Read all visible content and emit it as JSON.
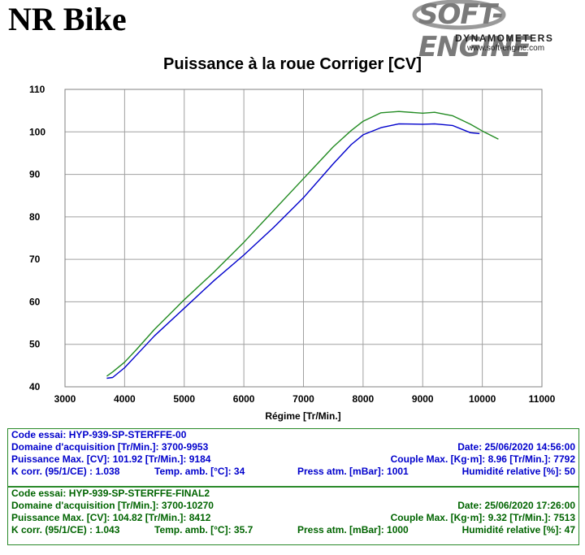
{
  "header": {
    "brand": "NR Bike",
    "logo_main": "SOFT-ENGINE",
    "logo_sub": "DYNAMOMETERS",
    "logo_url": "www.soft-engine.com"
  },
  "chart_data": {
    "type": "line",
    "title": "Puissance à la roue Corriger [CV]",
    "xlabel": "Régime [Tr/Min.]",
    "ylabel": "",
    "xlim": [
      3000,
      11000
    ],
    "ylim": [
      40,
      110
    ],
    "xticks": [
      3000,
      4000,
      5000,
      6000,
      7000,
      8000,
      9000,
      10000,
      11000
    ],
    "yticks": [
      40,
      50,
      60,
      70,
      80,
      90,
      100,
      110
    ],
    "grid": true,
    "series": [
      {
        "color": "#0000cc",
        "x": [
          3700,
          3800,
          4000,
          4200,
          4500,
          5000,
          5500,
          6000,
          6500,
          7000,
          7500,
          7800,
          8000,
          8300,
          8600,
          9000,
          9200,
          9500,
          9800,
          9953
        ],
        "y": [
          42.0,
          42.2,
          44.5,
          47.5,
          52.0,
          58.5,
          65.0,
          71.0,
          77.5,
          84.5,
          92.5,
          97.0,
          99.3,
          101.0,
          101.9,
          101.8,
          101.9,
          101.5,
          99.8,
          99.6
        ]
      },
      {
        "color": "#228b22",
        "x": [
          3700,
          3800,
          4000,
          4200,
          4500,
          5000,
          5500,
          6000,
          6500,
          7000,
          7500,
          7800,
          8000,
          8300,
          8600,
          9000,
          9200,
          9500,
          9800,
          10000,
          10270
        ],
        "y": [
          42.5,
          43.5,
          45.8,
          48.8,
          53.5,
          60.5,
          67.0,
          74.0,
          81.5,
          89.0,
          96.5,
          100.3,
          102.5,
          104.5,
          104.8,
          104.4,
          104.6,
          103.8,
          101.8,
          100.2,
          98.3
        ]
      }
    ]
  },
  "tests": [
    {
      "code": "Code essai: HYP-939-SP-STERFFE-00",
      "domain": "Domaine d'acquisition [Tr/Min.]: 3700-9953",
      "date": "Date: 25/06/2020    14:56:00",
      "power": "Puissance Max. [CV]: 101.92   [Tr/Min.]: 9184",
      "torque": "Couple Max. [Kg·m]: 8.96   [Tr/Min.]: 7792",
      "kcorr": "K corr. (95/1/CE) : 1.038",
      "temp": "Temp. amb. [°C]: 34",
      "press": "Press atm. [mBar]: 1001",
      "humidity": "Humidité relative [%]: 50"
    },
    {
      "code": "Code essai: HYP-939-SP-STERFFE-FINAL2",
      "domain": "Domaine d'acquisition [Tr/Min.]: 3700-10270",
      "date": "Date: 25/06/2020    17:26:00",
      "power": "Puissance Max. [CV]: 104.82   [Tr/Min.]: 8412",
      "torque": "Couple Max. [Kg·m]: 9.32   [Tr/Min.]: 7513",
      "kcorr": "K corr. (95/1/CE) : 1.043",
      "temp": "Temp. amb. [°C]: 35.7",
      "press": "Press atm. [mBar]: 1000",
      "humidity": "Humidité relative [%]: 47"
    }
  ]
}
